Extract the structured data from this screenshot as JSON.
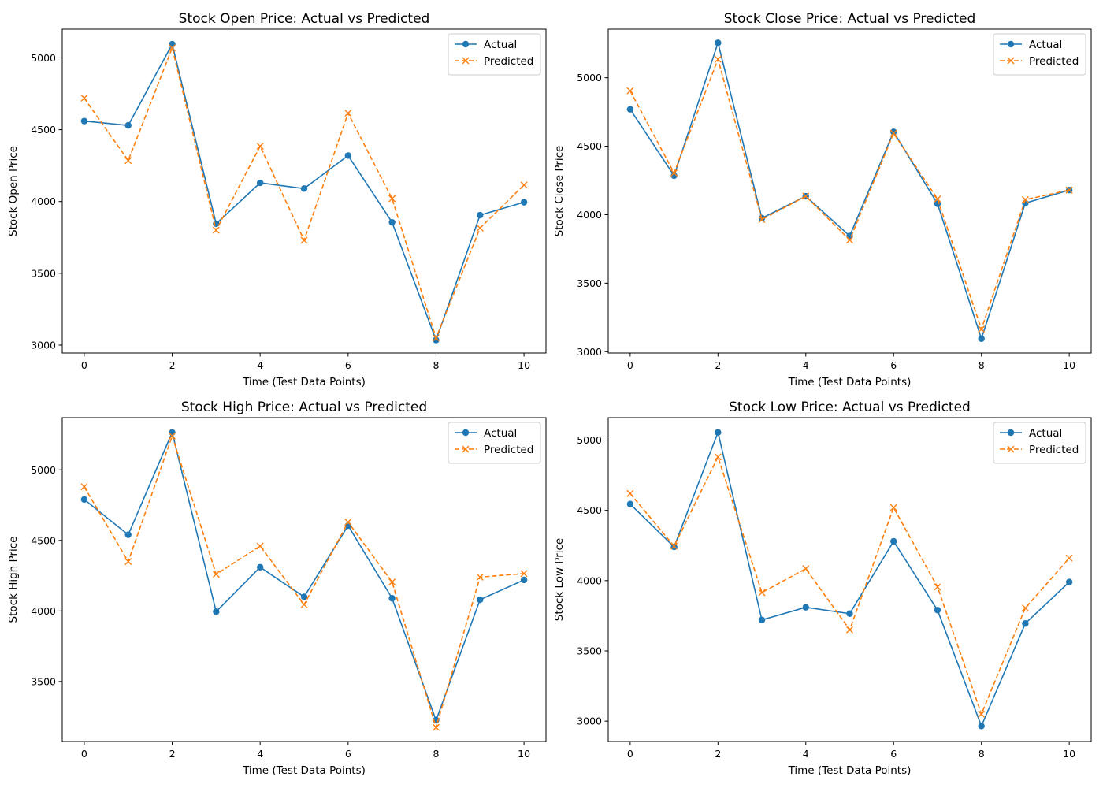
{
  "chart_data": [
    {
      "type": "line",
      "title": "Stock Open Price: Actual vs Predicted",
      "xlabel": "Time (Test Data Points)",
      "ylabel": "Stock Open Price",
      "x": [
        0,
        1,
        2,
        3,
        4,
        5,
        6,
        7,
        8,
        9,
        10
      ],
      "xlim": [
        -0.5,
        10.5
      ],
      "ylim": [
        2945,
        5200
      ],
      "xticks": [
        0,
        2,
        4,
        6,
        8,
        10
      ],
      "yticks": [
        3000,
        3500,
        4000,
        4500,
        5000
      ],
      "grid": false,
      "legend_position": "upper right",
      "series": [
        {
          "name": "Actual",
          "color": "#1f77b4",
          "marker": "circle",
          "linestyle": "solid",
          "values": [
            4560,
            4530,
            5095,
            3845,
            4130,
            4090,
            4320,
            3855,
            3035,
            3905,
            3995
          ]
        },
        {
          "name": "Predicted",
          "color": "#ff7f0e",
          "marker": "x",
          "linestyle": "dashed",
          "values": [
            4720,
            4285,
            5070,
            3800,
            4385,
            3730,
            4615,
            4020,
            3050,
            3815,
            4115
          ]
        }
      ]
    },
    {
      "type": "line",
      "title": "Stock Close Price: Actual vs Predicted",
      "xlabel": "Time (Test Data Points)",
      "ylabel": "Stock Close Price",
      "x": [
        0,
        1,
        2,
        3,
        4,
        5,
        6,
        7,
        8,
        9,
        10
      ],
      "xlim": [
        -0.5,
        10.5
      ],
      "ylim": [
        2990,
        5355
      ],
      "xticks": [
        0,
        2,
        4,
        6,
        8,
        10
      ],
      "yticks": [
        3000,
        3500,
        4000,
        4500,
        5000
      ],
      "grid": false,
      "legend_position": "upper right",
      "series": [
        {
          "name": "Actual",
          "color": "#1f77b4",
          "marker": "circle",
          "linestyle": "solid",
          "values": [
            4770,
            4285,
            5255,
            3975,
            4135,
            3845,
            4605,
            4080,
            3095,
            4085,
            4180
          ]
        },
        {
          "name": "Predicted",
          "color": "#ff7f0e",
          "marker": "x",
          "linestyle": "dashed",
          "values": [
            4905,
            4305,
            5135,
            3965,
            4135,
            3815,
            4595,
            4115,
            3165,
            4110,
            4180
          ]
        }
      ]
    },
    {
      "type": "line",
      "title": "Stock High Price: Actual vs Predicted",
      "xlabel": "Time (Test Data Points)",
      "ylabel": "Stock High Price",
      "x": [
        0,
        1,
        2,
        3,
        4,
        5,
        6,
        7,
        8,
        9,
        10
      ],
      "xlim": [
        -0.5,
        10.5
      ],
      "ylim": [
        3075,
        5370
      ],
      "xticks": [
        0,
        2,
        4,
        6,
        8,
        10
      ],
      "yticks": [
        3500,
        4000,
        4500,
        5000
      ],
      "grid": false,
      "legend_position": "upper right",
      "series": [
        {
          "name": "Actual",
          "color": "#1f77b4",
          "marker": "circle",
          "linestyle": "solid",
          "values": [
            4790,
            4540,
            5265,
            3995,
            4310,
            4100,
            4605,
            4090,
            3225,
            4080,
            4220
          ]
        },
        {
          "name": "Predicted",
          "color": "#ff7f0e",
          "marker": "x",
          "linestyle": "dashed",
          "values": [
            4880,
            4350,
            5240,
            4260,
            4460,
            4045,
            4630,
            4205,
            3175,
            4240,
            4265
          ]
        }
      ]
    },
    {
      "type": "line",
      "title": "Stock Low Price: Actual vs Predicted",
      "xlabel": "Time (Test Data Points)",
      "ylabel": "Stock Low Price",
      "x": [
        0,
        1,
        2,
        3,
        4,
        5,
        6,
        7,
        8,
        9,
        10
      ],
      "xlim": [
        -0.5,
        10.5
      ],
      "ylim": [
        2855,
        5160
      ],
      "xticks": [
        0,
        2,
        4,
        6,
        8,
        10
      ],
      "yticks": [
        3000,
        3500,
        4000,
        4500,
        5000
      ],
      "grid": false,
      "legend_position": "upper right",
      "series": [
        {
          "name": "Actual",
          "color": "#1f77b4",
          "marker": "circle",
          "linestyle": "solid",
          "values": [
            4545,
            4240,
            5055,
            3720,
            3810,
            3765,
            4280,
            3790,
            2965,
            3695,
            3990
          ]
        },
        {
          "name": "Predicted",
          "color": "#ff7f0e",
          "marker": "x",
          "linestyle": "dashed",
          "values": [
            4620,
            4245,
            4880,
            3915,
            4085,
            3650,
            4520,
            3955,
            3050,
            3805,
            4160
          ]
        }
      ]
    }
  ]
}
